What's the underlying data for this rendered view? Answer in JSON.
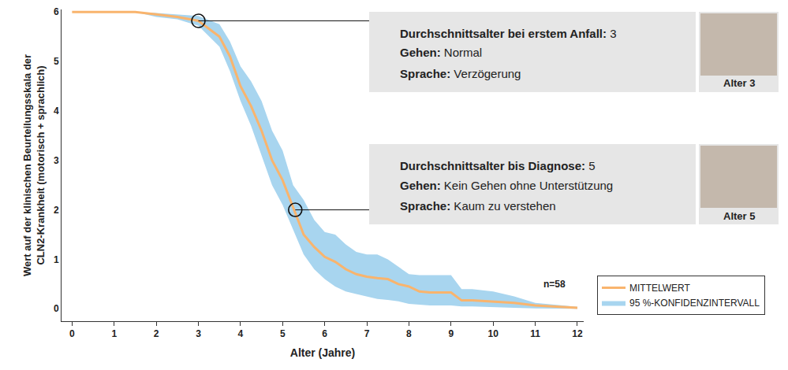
{
  "chart_data": {
    "type": "line",
    "xlabel": "Alter (Jahre)",
    "ylabel": "Wert auf der klinischen Beurteilungsskala der\nCLN2-Krankheit (motorisch + sprachlich)",
    "x": [
      0,
      1,
      1.5,
      2,
      2.5,
      3,
      3.5,
      3.75,
      4,
      4.25,
      4.5,
      4.75,
      5,
      5.25,
      5.5,
      5.75,
      6,
      6.25,
      6.5,
      6.75,
      7,
      7.25,
      7.5,
      7.75,
      8,
      8.25,
      8.5,
      9,
      9.25,
      9.5,
      10,
      10.5,
      11,
      11.5,
      12
    ],
    "series": [
      {
        "name": "MITTELWERT",
        "color": "#f9b46d",
        "values": [
          6,
          6,
          6,
          5.95,
          5.9,
          5.82,
          5.5,
          5.1,
          4.5,
          4.1,
          3.6,
          3.0,
          2.6,
          2.05,
          1.5,
          1.25,
          1.05,
          0.95,
          0.8,
          0.7,
          0.65,
          0.62,
          0.6,
          0.5,
          0.45,
          0.35,
          0.33,
          0.33,
          0.17,
          0.17,
          0.15,
          0.12,
          0.07,
          0.05,
          0.02
        ]
      }
    ],
    "band": {
      "name": "95 %-KONFIDENZINTERVALL",
      "color": "#a8d5ef",
      "upper": [
        6,
        6,
        6,
        5.98,
        5.95,
        5.92,
        5.75,
        5.4,
        4.9,
        4.6,
        4.2,
        3.6,
        3.2,
        2.5,
        2.2,
        1.8,
        1.55,
        1.5,
        1.3,
        1.15,
        1.1,
        1.1,
        1.0,
        0.85,
        0.7,
        0.68,
        0.68,
        0.68,
        0.4,
        0.4,
        0.35,
        0.25,
        0.12,
        0.08,
        0.04
      ],
      "lower": [
        6,
        6,
        6,
        5.9,
        5.85,
        5.72,
        5.3,
        4.8,
        4.2,
        3.7,
        3.1,
        2.5,
        2.1,
        1.6,
        1.1,
        0.8,
        0.6,
        0.45,
        0.35,
        0.3,
        0.25,
        0.2,
        0.18,
        0.15,
        0.1,
        0.08,
        0.07,
        0.07,
        0.05,
        0.05,
        0.03,
        0.02,
        0.01,
        0,
        0
      ]
    },
    "xlim": [
      -0.25,
      12.15
    ],
    "xticks": [
      0,
      1,
      2,
      3,
      4,
      5,
      6,
      7,
      8,
      9,
      10,
      11,
      12
    ],
    "ylim": [
      -0.25,
      6.05
    ],
    "yticks": [
      0,
      1,
      2,
      3,
      4,
      5,
      6
    ],
    "grid": false,
    "legend": "lower right",
    "note": "n=58",
    "annotations": [
      {
        "x": 3,
        "y": 5.82,
        "image_caption": "Alter 3",
        "rows": [
          {
            "label": "Durchschnittsalter bei erstem Anfall:",
            "value": 3
          },
          {
            "label": "Gehen:",
            "text": "Normal"
          },
          {
            "label": "Sprache:",
            "text": "Verzögerung"
          }
        ]
      },
      {
        "x": 5.3,
        "y": 2.0,
        "image_caption": "Alter 5",
        "rows": [
          {
            "label": "Durchschnittsalter bis Diagnose:",
            "value": 5
          },
          {
            "label": "Gehen:",
            "text": "Kein Gehen ohne Unterstützung"
          },
          {
            "label": "Sprache:",
            "text": "Kaum zu verstehen"
          }
        ]
      }
    ]
  }
}
